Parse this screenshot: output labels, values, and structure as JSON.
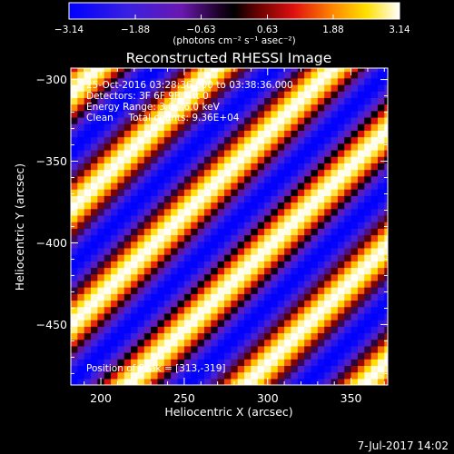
{
  "chart_data": {
    "type": "heatmap",
    "title": "Reconstructed RHESSI Image",
    "xlabel": "Heliocentric X (arcsec)",
    "ylabel": "Heliocentric Y (arcsec)",
    "xlim": [
      182,
      372
    ],
    "ylim": [
      -487,
      -293
    ],
    "x_ticks": [
      200,
      250,
      300,
      350
    ],
    "y_ticks": [
      -300,
      -350,
      -400,
      -450
    ],
    "x_tick_labels": [
      "200",
      "250",
      "300",
      "350"
    ],
    "y_tick_labels": [
      "−300",
      "−350",
      "−400",
      "−450"
    ],
    "colorbar": {
      "range": [
        -3.14,
        3.14
      ],
      "ticks": [
        -3.14,
        -1.88,
        -0.63,
        0.63,
        1.88,
        3.14
      ],
      "tick_labels": [
        "−3.14",
        "−1.88",
        "−0.63",
        "0.63",
        "1.88",
        "3.14"
      ],
      "unit_label": "(photons cm⁻² s⁻¹ asec⁻²)",
      "colormap": "blue-purple-black-red-yellow-white"
    },
    "field": {
      "amplitude": 3.14,
      "fringe_period_arcsec": 50,
      "fringe_direction_deg": 135,
      "pixel_arcsec": 4
    },
    "annotations": [
      "25-Oct-2016 03:28:36.000 to 03:38:36.000",
      "Detectors: 3F 6F 9F, Att 0",
      "Energy Range: 3.0 - 6.0 keV",
      "Clean     Total counts: 9.36E+04"
    ],
    "peak_label": "Position of Peak = [313,-319]"
  },
  "footer": {
    "date": "7-Jul-2017 14:02"
  }
}
